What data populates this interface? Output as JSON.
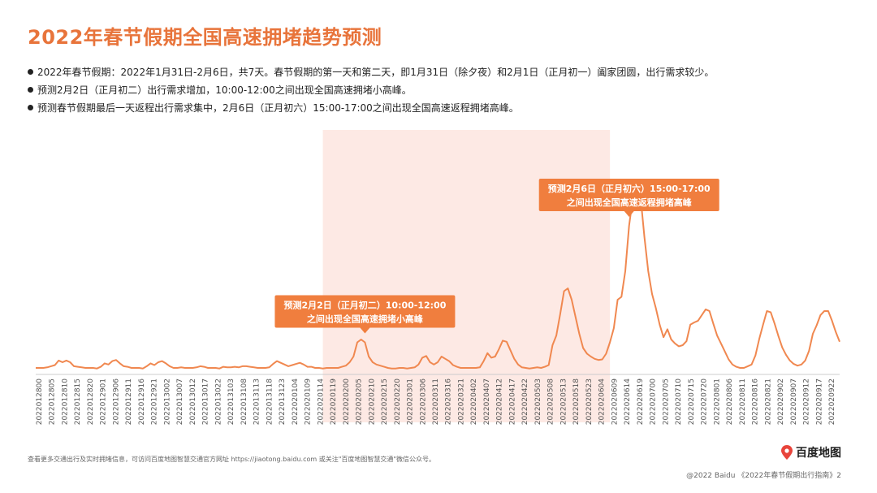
{
  "page": {
    "title": "2022年春节假期全国高速拥堵趋势预测",
    "bullets": [
      "2022年春节假期：2022年1月31日-2月6日，共7天。春节假期的第一天和第二天，即1月31日（除夕夜）和2月1日（正月初一）阖家团圆，出行需求较少。",
      "预测2月2日（正月初二）出行需求增加，10:00-12:00之间出现全国高速拥堵小高峰。",
      "预测春节假期最后一天返程出行需求集中，2月6日（正月初六）15:00-17:00之间出现全国高速返程拥堵高峰。"
    ],
    "footer_left": "查看更多交通出行及实时拥堵信息，可访问百度地图智慧交通官方网址 https://jiaotong.baidu.com 或关注\"百度地图智慧交通\"微信公众号。",
    "logo_text": "百度地图",
    "footer_right": "@2022 Baidu 《2022年春节假期出行指南》2",
    "accent_color": "#e8743b",
    "line_color": "#f08850",
    "callout_color": "#f07e3e",
    "highlight_color": "#fde9e4"
  },
  "chart_data": {
    "type": "line",
    "title": "",
    "xlabel": "",
    "ylabel": "",
    "grid": false,
    "x_tick_labels": [
      "2022012800",
      "2022012805",
      "2022012810",
      "2022012815",
      "2022012820",
      "2022012901",
      "2022012906",
      "2022012911",
      "2022012916",
      "2022012921",
      "2022013002",
      "2022013007",
      "2022013012",
      "2022013017",
      "2022013022",
      "2022013103",
      "2022013108",
      "2022013113",
      "2022013118",
      "2022013123",
      "2022020104",
      "2022020109",
      "2022020114",
      "2022020119",
      "2022020200",
      "2022020205",
      "2022020210",
      "2022020215",
      "2022020220",
      "2022020301",
      "2022020306",
      "2022020311",
      "2022020316",
      "2022020321",
      "2022020402",
      "2022020407",
      "2022020412",
      "2022020417",
      "2022020422",
      "2022020503",
      "2022020508",
      "2022020513",
      "2022020518",
      "2022020523",
      "2022020604",
      "2022020609",
      "2022020614",
      "2022020619",
      "2022020700",
      "2022020705",
      "2022020710",
      "2022020715",
      "2022020720",
      "2022020801",
      "2022020806",
      "2022020811",
      "2022020816",
      "2022020821",
      "2022020902",
      "2022020907",
      "2022020912",
      "2022020917",
      "2022020922"
    ],
    "values": [
      1.0,
      1.0,
      1.0,
      1.1,
      1.3,
      1.5,
      2.3,
      2.0,
      2.3,
      2.0,
      1.3,
      1.2,
      1.1,
      1.0,
      1.0,
      1.0,
      0.9,
      1.2,
      1.8,
      1.6,
      2.2,
      2.4,
      1.8,
      1.3,
      1.2,
      1.0,
      1.0,
      1.0,
      0.9,
      1.3,
      1.8,
      1.5,
      2.0,
      2.2,
      1.8,
      1.3,
      1.0,
      1.0,
      1.1,
      1.0,
      1.0,
      1.0,
      1.1,
      1.3,
      1.2,
      1.0,
      1.0,
      1.0,
      0.9,
      1.2,
      1.1,
      1.1,
      1.2,
      1.1,
      1.3,
      1.3,
      1.2,
      1.1,
      1.0,
      1.0,
      1.0,
      1.1,
      1.7,
      2.2,
      1.9,
      1.6,
      1.3,
      1.5,
      1.7,
      1.9,
      1.6,
      1.2,
      1.2,
      1.0,
      1.0,
      0.9,
      1.0,
      1.0,
      1.0,
      1.0,
      1.2,
      1.4,
      2.0,
      3.0,
      5.5,
      6.0,
      5.5,
      3.0,
      2.0,
      1.6,
      1.4,
      1.2,
      1.0,
      0.9,
      0.9,
      1.0,
      1.0,
      0.9,
      1.0,
      1.1,
      1.6,
      2.8,
      3.1,
      2.0,
      1.6,
      2.0,
      3.0,
      2.6,
      2.2,
      1.5,
      1.2,
      1.0,
      1.0,
      1.0,
      1.0,
      1.0,
      1.1,
      2.2,
      3.6,
      2.8,
      3.0,
      4.3,
      5.8,
      5.6,
      4.1,
      2.6,
      1.6,
      1.1,
      1.0,
      0.9,
      1.0,
      1.1,
      1.0,
      1.2,
      1.5,
      5.0,
      6.7,
      10.5,
      14.5,
      15.0,
      13.0,
      10.0,
      7.0,
      4.5,
      3.5,
      3.0,
      2.6,
      2.4,
      2.5,
      3.5,
      5.5,
      8.0,
      13.0,
      13.5,
      18.0,
      26.0,
      31.0,
      34.0,
      31.0,
      24.0,
      18.0,
      14.0,
      11.5,
      8.6,
      6.4,
      7.8,
      6.0,
      5.3,
      4.8,
      5.0,
      5.7,
      8.6,
      9.0,
      9.3,
      10.3,
      11.3,
      11.0,
      8.8,
      6.7,
      5.3,
      3.9,
      2.5,
      1.6,
      1.2,
      1.0,
      1.0,
      1.3,
      1.6,
      3.2,
      6.1,
      8.6,
      11.0,
      10.8,
      8.8,
      6.6,
      4.6,
      3.3,
      2.3,
      1.7,
      1.4,
      1.6,
      2.3,
      4.0,
      7.0,
      8.5,
      10.3,
      11.0,
      11.0,
      9.3,
      7.3,
      5.6
    ],
    "value_unit": "",
    "highlight_range_index": [
      75,
      150
    ],
    "annotations": [
      {
        "point_index": 86,
        "text_line1": "预测2月2日（正月初二）10:00-12:00",
        "text_line2": "之间出现全国高速拥堵小高峰"
      },
      {
        "point_index": 155,
        "text_line1": "预测2月6日（正月初六）15:00-17:00",
        "text_line2": "之间出现全国高速返程拥堵高峰"
      }
    ],
    "ylim": [
      0,
      40
    ]
  }
}
